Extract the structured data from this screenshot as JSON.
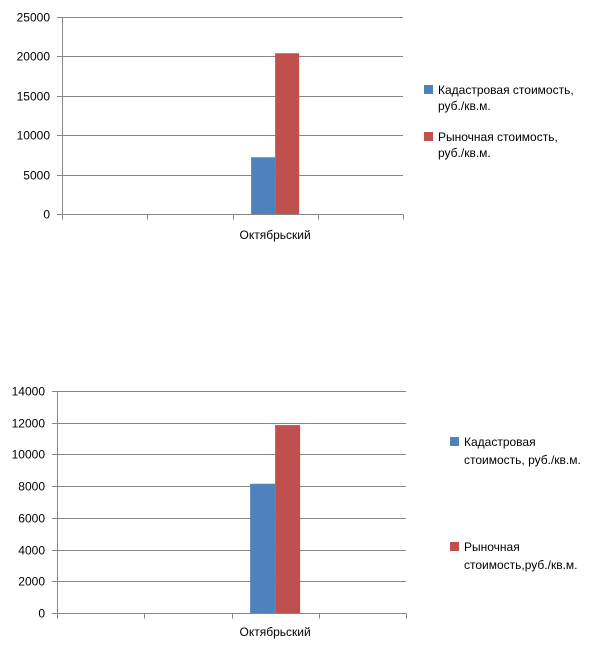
{
  "chart_data": [
    {
      "type": "bar",
      "categories": [
        "",
        "",
        "Октябрьский",
        ""
      ],
      "series": [
        {
          "name": "Кадастровая стоимость, руб./кв.м.",
          "legend_lines": [
            "Кадастровая стоимость,",
            "руб./кв.м."
          ],
          "color": "#4f81bd",
          "values": [
            null,
            null,
            7200,
            null
          ]
        },
        {
          "name": "Рыночная стоимость, руб./кв.м.",
          "legend_lines": [
            "Рыночная стоимость,",
            "руб./кв.м."
          ],
          "color": "#c0504d",
          "values": [
            null,
            null,
            20400,
            null
          ]
        }
      ],
      "ylim": [
        0,
        25000
      ],
      "yticks": [
        0,
        5000,
        10000,
        15000,
        20000,
        25000
      ],
      "grid": true,
      "legend_position": "right"
    },
    {
      "type": "bar",
      "categories": [
        "",
        "",
        "Октябрьский",
        ""
      ],
      "series": [
        {
          "name": "Кадастровая стоимость, руб./кв.м.",
          "legend_lines": [
            "Кадастровая",
            "стоимость, руб./кв.м."
          ],
          "color": "#4f81bd",
          "values": [
            null,
            null,
            8150,
            null
          ]
        },
        {
          "name": "Рыночная стоимость,руб./кв.м.",
          "legend_lines": [
            "Рыночная",
            "стоимость,руб./кв.м."
          ],
          "color": "#c0504d",
          "values": [
            null,
            null,
            11850,
            null
          ]
        }
      ],
      "ylim": [
        0,
        14000
      ],
      "yticks": [
        0,
        2000,
        4000,
        6000,
        8000,
        10000,
        12000,
        14000
      ],
      "grid": true,
      "legend_position": "right"
    }
  ]
}
